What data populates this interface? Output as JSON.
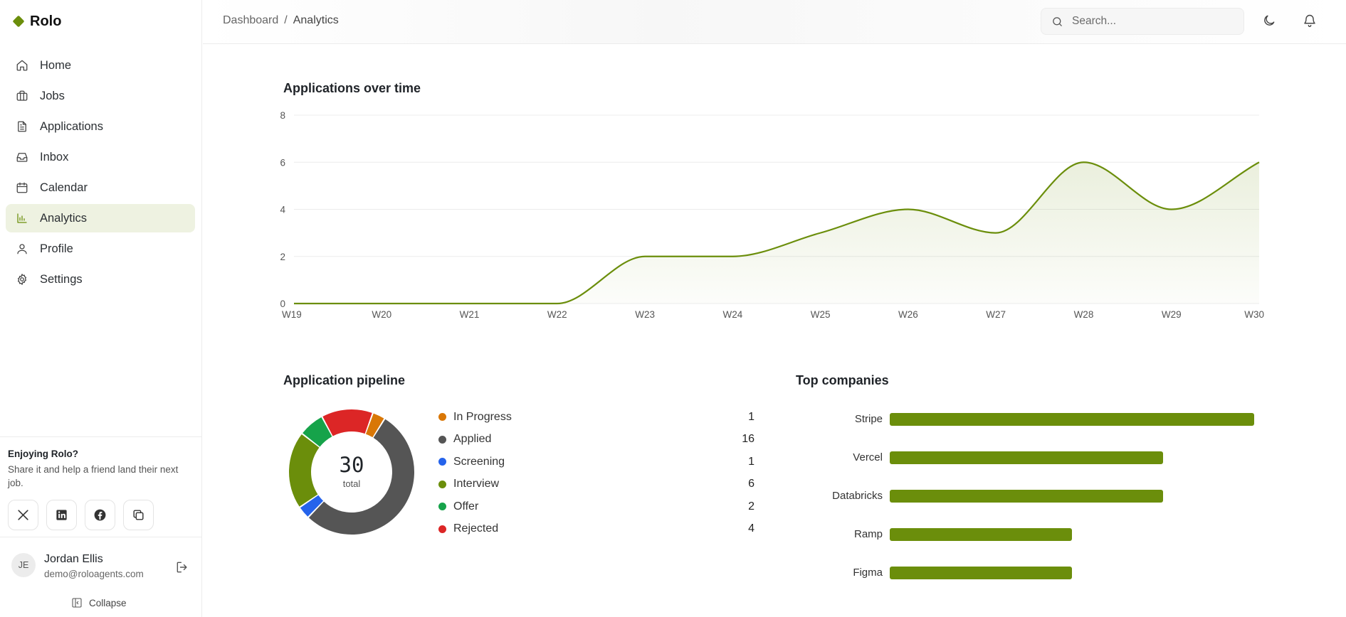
{
  "brand": {
    "name": "Rolo",
    "color": "#6b8e0b"
  },
  "nav": [
    {
      "label": "Home",
      "icon": "home-icon",
      "active": false
    },
    {
      "label": "Jobs",
      "icon": "briefcase-icon",
      "active": false
    },
    {
      "label": "Applications",
      "icon": "file-text-icon",
      "active": false
    },
    {
      "label": "Inbox",
      "icon": "inbox-icon",
      "active": false
    },
    {
      "label": "Calendar",
      "icon": "calendar-icon",
      "active": false
    },
    {
      "label": "Analytics",
      "icon": "bar-chart-icon",
      "active": true
    },
    {
      "label": "Profile",
      "icon": "user-icon",
      "active": false
    },
    {
      "label": "Settings",
      "icon": "gear-icon",
      "active": false
    }
  ],
  "promo": {
    "title": "Enjoying Rolo?",
    "text": "Share it and help a friend land their next job.",
    "share_icons": [
      "x-icon",
      "linkedin-icon",
      "facebook-icon",
      "copy-icon"
    ]
  },
  "user": {
    "initials": "JE",
    "name": "Jordan Ellis",
    "email": "demo@roloagents.com",
    "collapse_label": "Collapse"
  },
  "topbar": {
    "breadcrumb": [
      "Dashboard",
      "Analytics"
    ],
    "search_placeholder": "Search..."
  },
  "sections": {
    "line_title": "Applications over time",
    "pipeline_title": "Application pipeline",
    "companies_title": "Top companies"
  },
  "chart_data": [
    {
      "type": "area",
      "title": "Applications over time",
      "x": [
        "W19",
        "W20",
        "W21",
        "W22",
        "W23",
        "W24",
        "W25",
        "W26",
        "W27",
        "W28",
        "W29",
        "W30"
      ],
      "y": [
        0,
        0,
        0,
        0,
        2,
        2,
        3,
        4,
        3,
        6,
        4,
        6
      ],
      "yticks": [
        "0",
        "2",
        "4",
        "6",
        "8"
      ],
      "ylim": [
        0,
        8
      ],
      "color": "#6b8e0b",
      "grid": true
    },
    {
      "type": "pie",
      "title": "Application pipeline",
      "total": "30",
      "total_label": "total",
      "slices": [
        {
          "label": "In Progress",
          "value": 1,
          "color": "#d97706"
        },
        {
          "label": "Applied",
          "value": 16,
          "color": "#555555"
        },
        {
          "label": "Screening",
          "value": 1,
          "color": "#2563eb"
        },
        {
          "label": "Interview",
          "value": 6,
          "color": "#6b8e0b"
        },
        {
          "label": "Offer",
          "value": 2,
          "color": "#16a34a"
        },
        {
          "label": "Rejected",
          "value": 4,
          "color": "#dc2626"
        }
      ]
    },
    {
      "type": "bar",
      "title": "Top companies",
      "categories": [
        "Stripe",
        "Vercel",
        "Databricks",
        "Ramp",
        "Figma"
      ],
      "values": [
        4,
        3,
        3,
        2,
        2
      ],
      "color": "#6b8e0b"
    }
  ]
}
